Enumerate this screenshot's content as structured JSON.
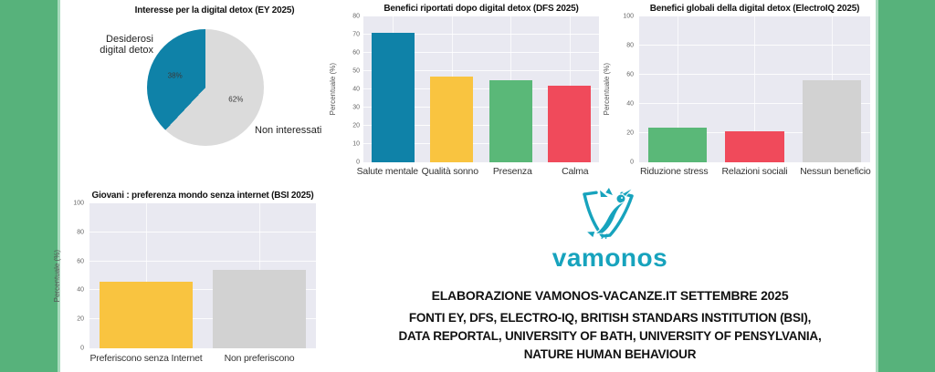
{
  "page": {
    "background": "#ffffff",
    "side_band_color": "#57b27b"
  },
  "chart_data": [
    {
      "id": "pie_interesse",
      "type": "pie",
      "title": "Interesse per la digital detox (EY 2025)",
      "slices": [
        {
          "label": "Desiderosi digital detox",
          "value": 38,
          "pct_label": "38%",
          "color": "#0f82a8"
        },
        {
          "label": "Non interessati",
          "value": 62,
          "pct_label": "62%",
          "color": "#dbdbdb"
        }
      ]
    },
    {
      "id": "bar_dfs",
      "type": "bar",
      "title": "Benefici riportati dopo digital detox (DFS 2025)",
      "ylabel": "Percentuale (%)",
      "ylim": [
        0,
        80
      ],
      "yticks": [
        0,
        10,
        20,
        30,
        40,
        50,
        60,
        70,
        80
      ],
      "categories": [
        "Salute mentale",
        "Qualità sonno",
        "Presenza",
        "Calma"
      ],
      "values": [
        71,
        47,
        45,
        42
      ],
      "colors": [
        "#0f82a8",
        "#f9c440",
        "#5ab878",
        "#f04a5b"
      ],
      "grid": true,
      "legend": "none"
    },
    {
      "id": "bar_electroiq",
      "type": "bar",
      "title": "Benefici globali della digital detox (ElectroIQ 2025)",
      "ylabel": "Percentuale (%)",
      "ylim": [
        0,
        100
      ],
      "yticks": [
        0,
        20,
        40,
        60,
        80,
        100
      ],
      "categories": [
        "Riduzione stress",
        "Relazioni sociali",
        "Nessun beneficio"
      ],
      "values": [
        24,
        21,
        56
      ],
      "colors": [
        "#5ab878",
        "#f04a5b",
        "#d2d2d2"
      ],
      "grid": true,
      "legend": "none"
    },
    {
      "id": "bar_bsi",
      "type": "bar",
      "title": "Giovani : preferenza mondo senza internet (BSI 2025)",
      "ylabel": "Percentuale (%)",
      "ylim": [
        0,
        100
      ],
      "yticks": [
        0,
        20,
        40,
        60,
        80,
        100
      ],
      "categories": [
        "Preferiscono senza Internet",
        "Non preferiscono"
      ],
      "values": [
        46,
        54
      ],
      "colors": [
        "#f9c440",
        "#d2d2d2"
      ],
      "grid": true,
      "legend": "none"
    }
  ],
  "logo": {
    "wordmark": "vamonos",
    "icon": "hummingbird-flag",
    "color": "#17a3bd"
  },
  "footer": {
    "line1": "ELABORAZIONE VAMONOS-VACANZE.IT SETTEMBRE 2025",
    "line2": "FONTI EY, DFS, ELECTRO-IQ, BRITISH STANDARS INSTITUTION (BSI),",
    "line3": "DATA REPORTAL, UNIVERSITY OF BATH, UNIVERSITY OF PENSYLVANIA,",
    "line4": "NATURE HUMAN BEHAVIOUR"
  }
}
